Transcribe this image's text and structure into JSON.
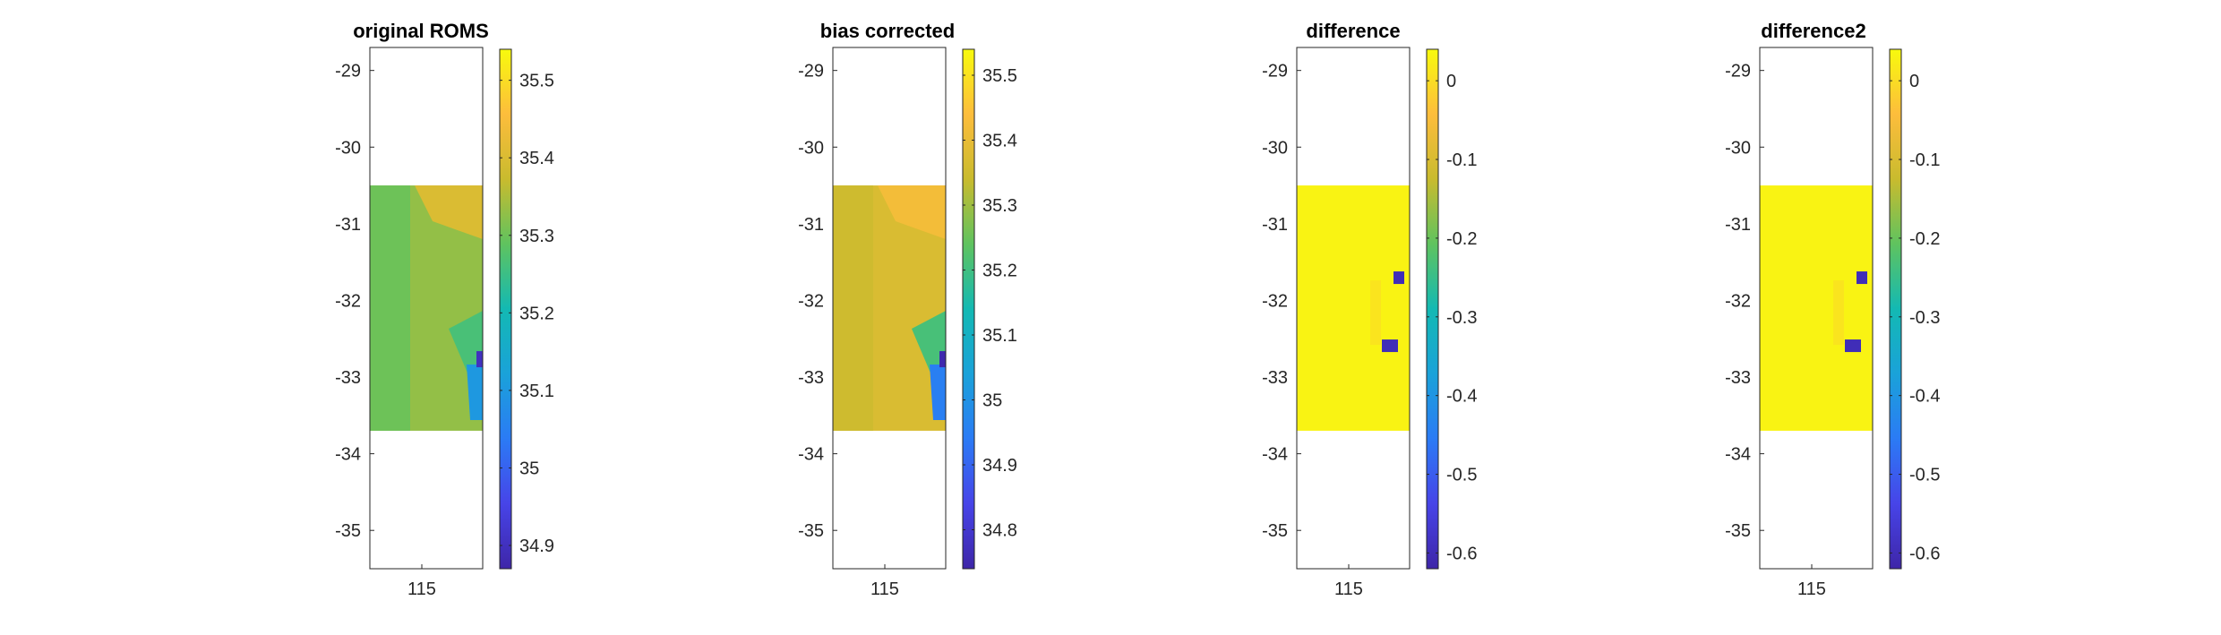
{
  "chart_data": [
    {
      "type": "heatmap",
      "title": "original ROMS",
      "xlabel": "",
      "ylabel": "",
      "x_ticks": [
        115
      ],
      "y_ticks": [
        -29,
        -30,
        -31,
        -32,
        -33,
        -34,
        -35
      ],
      "ylim": [
        -35.5,
        -28.7
      ],
      "data_extent": {
        "lat": [
          -33.7,
          -30.5
        ]
      },
      "colorbar": {
        "colormap": "parula",
        "range": [
          34.87,
          35.54
        ],
        "ticks": [
          34.9,
          35,
          35.1,
          35.2,
          35.3,
          35.4,
          35.5
        ]
      },
      "field": {
        "base_value": 35.33,
        "offshore_value": 35.3,
        "inshore_value": 35.4,
        "coastal_min": 34.9
      }
    },
    {
      "type": "heatmap",
      "title": "bias corrected",
      "xlabel": "",
      "ylabel": "",
      "x_ticks": [
        115
      ],
      "y_ticks": [
        -29,
        -30,
        -31,
        -32,
        -33,
        -34,
        -35
      ],
      "ylim": [
        -35.5,
        -28.7
      ],
      "data_extent": {
        "lat": [
          -33.7,
          -30.5
        ]
      },
      "colorbar": {
        "colormap": "parula",
        "range": [
          34.74,
          35.54
        ],
        "ticks": [
          34.8,
          34.9,
          35,
          35.1,
          35.2,
          35.3,
          35.4,
          35.5
        ]
      },
      "field": {
        "base_value": 35.37,
        "offshore_value": 35.35,
        "inshore_value": 35.42,
        "coastal_min": 34.75
      }
    },
    {
      "type": "heatmap",
      "title": "difference",
      "xlabel": "",
      "ylabel": "",
      "x_ticks": [
        115
      ],
      "y_ticks": [
        -29,
        -30,
        -31,
        -32,
        -33,
        -34,
        -35
      ],
      "ylim": [
        -35.5,
        -28.7
      ],
      "data_extent": {
        "lat": [
          -33.7,
          -30.5
        ]
      },
      "colorbar": {
        "colormap": "parula",
        "range": [
          -0.62,
          0.04
        ],
        "ticks": [
          -0.6,
          -0.5,
          -0.4,
          -0.3,
          -0.2,
          -0.1,
          0
        ]
      },
      "field": {
        "base_value": 0.03,
        "coastal_min": -0.6
      }
    },
    {
      "type": "heatmap",
      "title": "difference2",
      "xlabel": "",
      "ylabel": "",
      "x_ticks": [
        115
      ],
      "y_ticks": [
        -29,
        -30,
        -31,
        -32,
        -33,
        -34,
        -35
      ],
      "ylim": [
        -35.5,
        -28.7
      ],
      "data_extent": {
        "lat": [
          -33.7,
          -30.5
        ]
      },
      "colorbar": {
        "colormap": "parula",
        "range": [
          -0.62,
          0.04
        ],
        "ticks": [
          -0.6,
          -0.5,
          -0.4,
          -0.3,
          -0.2,
          -0.1,
          0
        ]
      },
      "field": {
        "base_value": 0.03,
        "coastal_min": -0.6
      }
    }
  ]
}
